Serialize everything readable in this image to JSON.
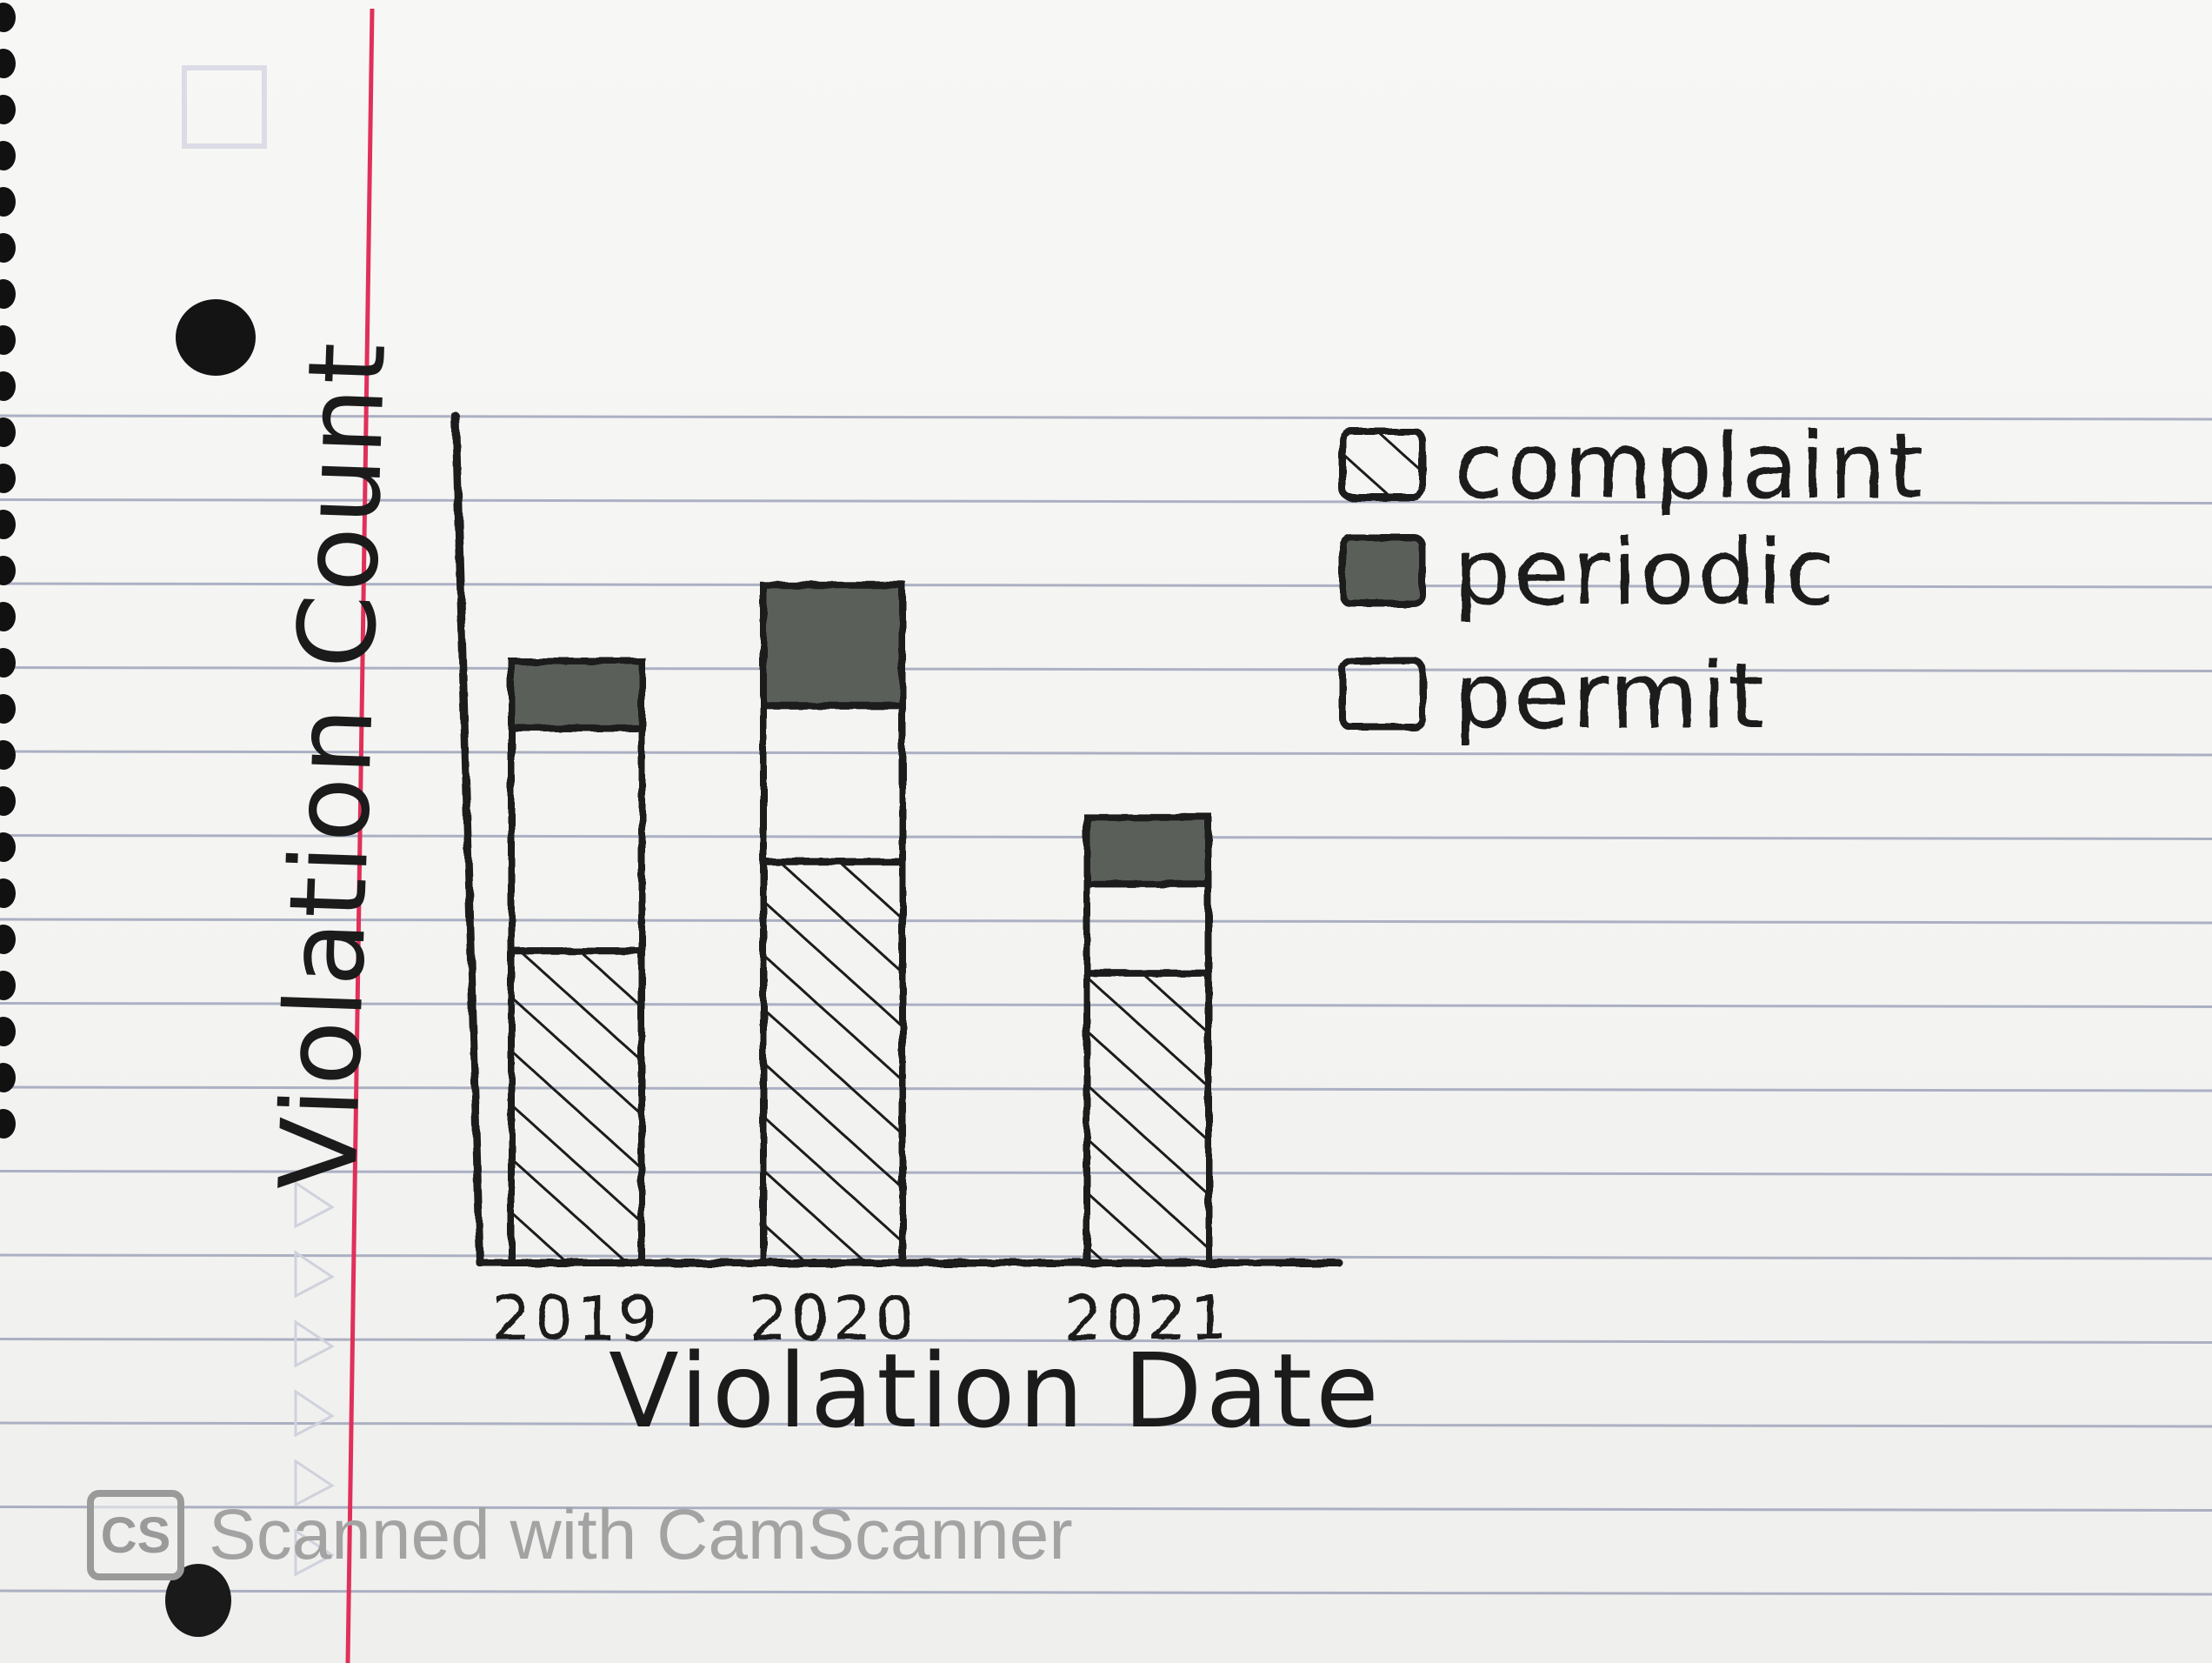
{
  "colors": {
    "ink": "#1c1c1c",
    "periodic_fill": "#5a5e5a",
    "margin_line": "#e0305a",
    "rule_line": "#9aa0b8",
    "paper": "#f6f6f4",
    "watermark": "#a3a3a3"
  },
  "chart_data": {
    "type": "bar",
    "stacked": true,
    "title": "",
    "xlabel": "Violation Date",
    "ylabel": "Violation Count",
    "categories": [
      "2019",
      "2020",
      "2021"
    ],
    "series": [
      {
        "name": "complaint",
        "pattern": "hatched",
        "values": [
          7,
          9,
          6.5
        ]
      },
      {
        "name": "permit",
        "pattern": "blank",
        "values": [
          5,
          3.5,
          2
        ]
      },
      {
        "name": "periodic",
        "pattern": "solid-dark",
        "values": [
          1.5,
          2.7,
          1.5
        ]
      }
    ],
    "ylim": [
      0,
      19
    ],
    "y_ticks_shown": false,
    "grid": false,
    "legend_position": "top-right"
  },
  "watermark": {
    "badge": "CS",
    "text": "Scanned with CamScanner"
  }
}
